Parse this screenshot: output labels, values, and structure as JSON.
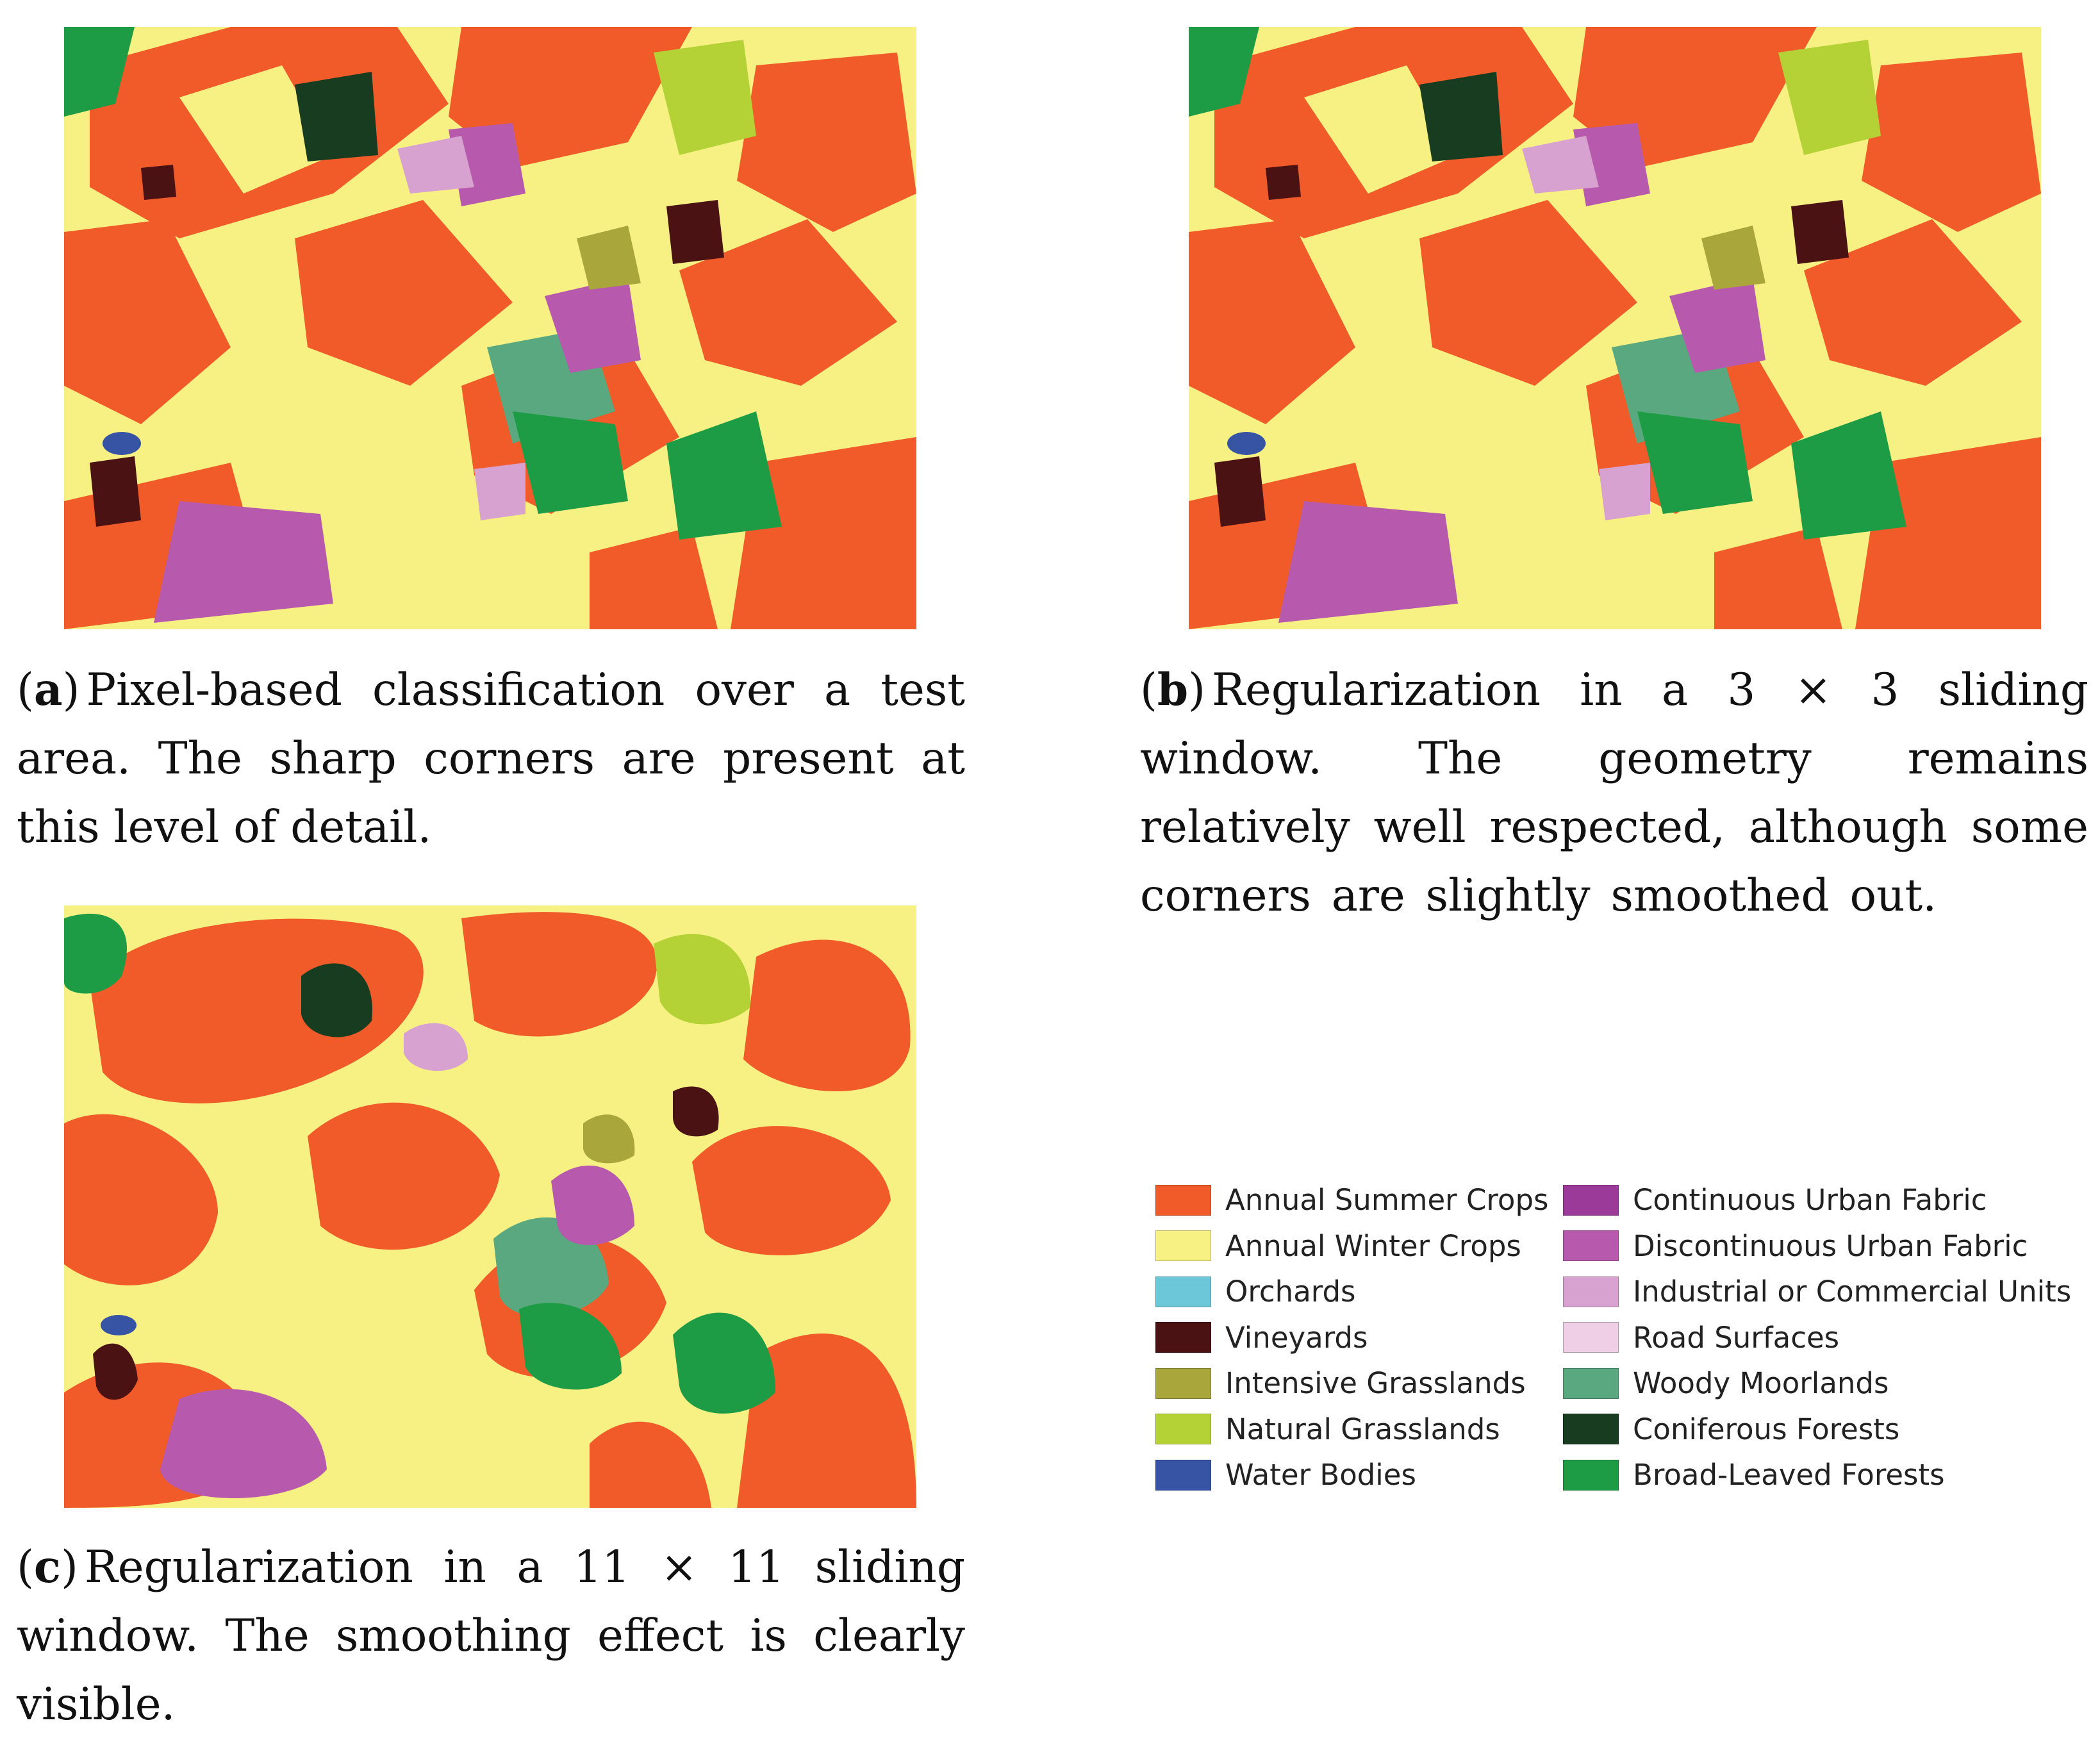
{
  "panels": [
    {
      "id": "a",
      "label": "a",
      "caption": "Pixel-based classification over a test area. The sharp corners are present at this level of detail."
    },
    {
      "id": "b",
      "label": "b",
      "caption": "Regularization in a 3 × 3 sliding window. The geometry remains relatively well respected, although some corners are slightly smoothed out."
    },
    {
      "id": "c",
      "label": "c",
      "caption": "Regularization in a 11 × 11 sliding window. The smoothing effect is clearly visible."
    }
  ],
  "legend": {
    "left_column": [
      {
        "label": "Annual Summer Crops",
        "color": "#f15a29"
      },
      {
        "label": "Annual Winter Crops",
        "color": "#f7f184"
      },
      {
        "label": "Orchards",
        "color": "#6cc8d8"
      },
      {
        "label": "Vineyards",
        "color": "#4b1214"
      },
      {
        "label": "Intensive Grasslands",
        "color": "#a9a73b"
      },
      {
        "label": "Natural Grasslands",
        "color": "#b4d236"
      },
      {
        "label": "Water Bodies",
        "color": "#3653a4"
      }
    ],
    "right_column": [
      {
        "label": "Continuous Urban Fabric",
        "color": "#9b3a98"
      },
      {
        "label": "Discontinuous Urban Fabric",
        "color": "#b75aad"
      },
      {
        "label": "Industrial or Commercial Units",
        "color": "#d7a2cf"
      },
      {
        "label": "Road Surfaces",
        "color": "#efcfe6"
      },
      {
        "label": "Woody Moorlands",
        "color": "#5aa87f"
      },
      {
        "label": "Coniferous Forests",
        "color": "#173c20"
      },
      {
        "label": "Broad-Leaved Forests",
        "color": "#1d9b45"
      }
    ]
  }
}
